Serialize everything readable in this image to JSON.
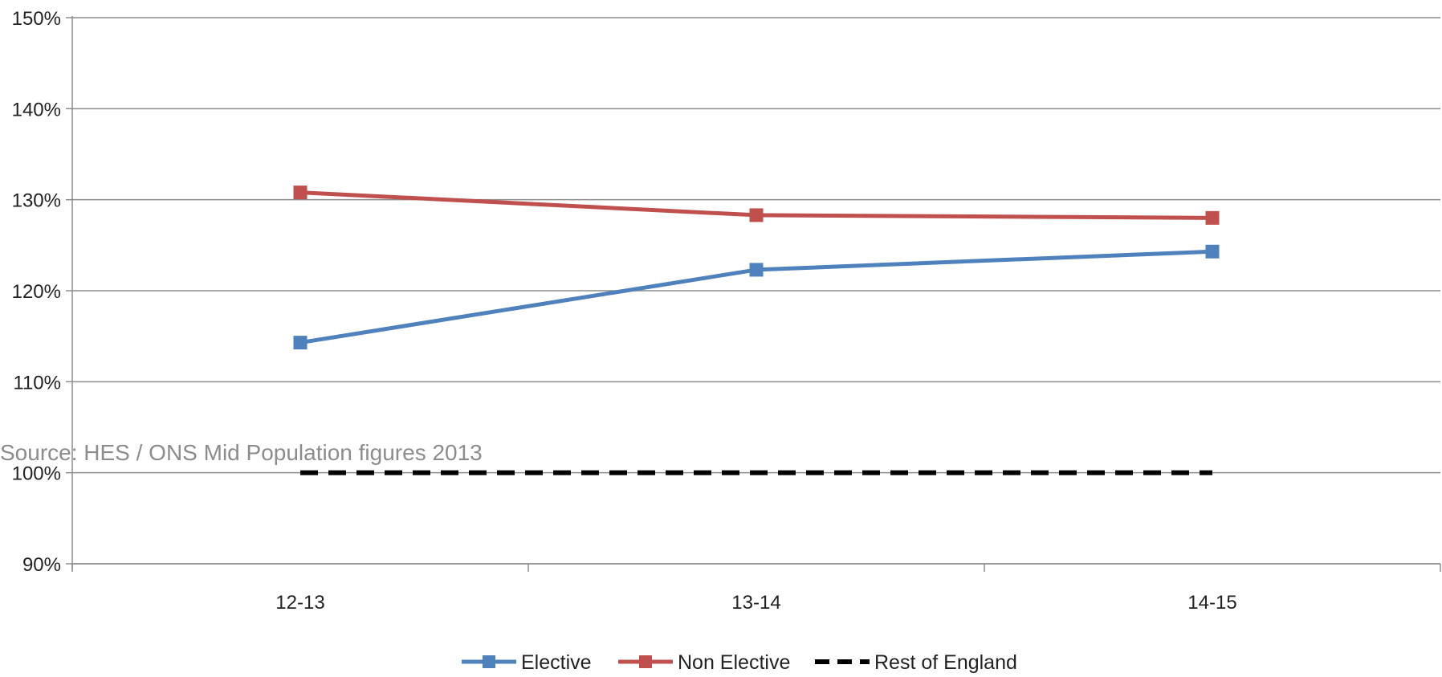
{
  "source_note": "Source: HES / ONS Mid Population figures 2013",
  "chart_data": {
    "type": "line",
    "title": "",
    "xlabel": "",
    "ylabel": "",
    "categories": [
      "12-13",
      "13-14",
      "14-15"
    ],
    "ylim": [
      90,
      150
    ],
    "y_ticks": [
      90,
      100,
      110,
      120,
      130,
      140,
      150
    ],
    "y_tick_labels": [
      "90%",
      "100%",
      "110%",
      "120%",
      "130%",
      "140%",
      "150%"
    ],
    "grid": true,
    "legend_position": "bottom",
    "series": [
      {
        "name": "Elective",
        "values": [
          114.3,
          122.3,
          124.3
        ],
        "color": "#4f81bd",
        "marker": "square",
        "dash": false
      },
      {
        "name": "Non Elective",
        "values": [
          130.8,
          128.3,
          128.0
        ],
        "color": "#c0504d",
        "marker": "square",
        "dash": false
      },
      {
        "name": "Rest of England",
        "values": [
          100,
          100,
          100
        ],
        "color": "#000000",
        "marker": "none",
        "dash": true
      }
    ]
  }
}
